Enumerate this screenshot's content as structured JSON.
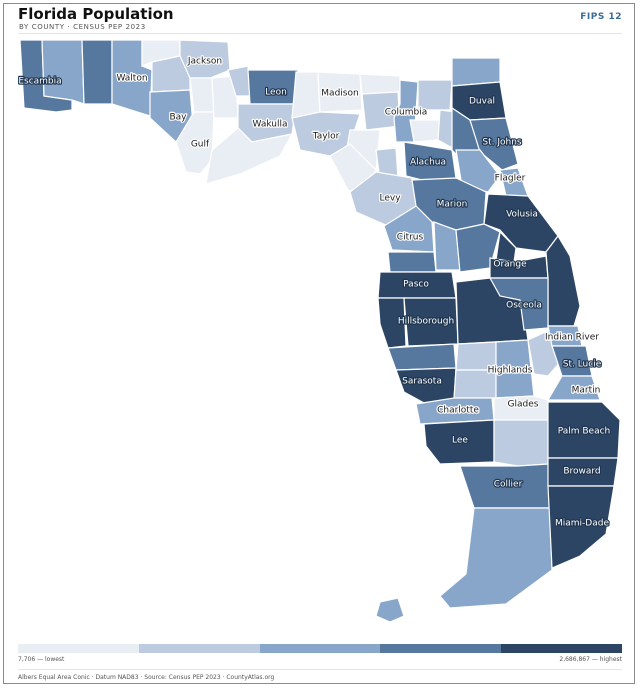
{
  "header": {
    "title": "Florida Population",
    "subtitle": "BY COUNTY · CENSUS PEP 2023",
    "fips": "FIPS 12"
  },
  "colors": {
    "c1": "#e9eef5",
    "c2": "#bccbdf",
    "c3": "#88a6c9",
    "c4": "#56789f",
    "c5": "#2c4564"
  },
  "legend": {
    "low_label": "7,706 — lowest",
    "high_label": "2,686,867 — highest"
  },
  "footer": {
    "credit": "Albers Equal Area Conic · Datum NAD83 · Source: Census PEP 2023 · CountyAtlas.org"
  },
  "counties": [
    {
      "name": "Escambia",
      "class": 4,
      "label": true
    },
    {
      "name": "Santa Rosa",
      "class": 3,
      "label": false
    },
    {
      "name": "Okaloosa",
      "class": 4,
      "label": false
    },
    {
      "name": "Walton",
      "class": 3,
      "label": true
    },
    {
      "name": "Holmes",
      "class": 1,
      "label": false
    },
    {
      "name": "Washington",
      "class": 2,
      "label": false
    },
    {
      "name": "Jackson",
      "class": 2,
      "label": true
    },
    {
      "name": "Bay",
      "class": 3,
      "label": true
    },
    {
      "name": "Calhoun",
      "class": 1,
      "label": false
    },
    {
      "name": "Gulf",
      "class": 1,
      "label": true
    },
    {
      "name": "Liberty",
      "class": 1,
      "label": false
    },
    {
      "name": "Gadsden",
      "class": 2,
      "label": false
    },
    {
      "name": "Leon",
      "class": 4,
      "label": true
    },
    {
      "name": "Wakulla",
      "class": 2,
      "label": true
    },
    {
      "name": "Franklin",
      "class": 1,
      "label": false
    },
    {
      "name": "Jefferson",
      "class": 1,
      "label": false
    },
    {
      "name": "Madison",
      "class": 1,
      "label": true
    },
    {
      "name": "Taylor",
      "class": 2,
      "label": true
    },
    {
      "name": "Hamilton",
      "class": 1,
      "label": false
    },
    {
      "name": "Suwannee",
      "class": 2,
      "label": false
    },
    {
      "name": "Lafayette",
      "class": 1,
      "label": false
    },
    {
      "name": "Dixie",
      "class": 1,
      "label": false
    },
    {
      "name": "Columbia",
      "class": 3,
      "label": true
    },
    {
      "name": "Baker",
      "class": 2,
      "label": false
    },
    {
      "name": "Union",
      "class": 1,
      "label": false
    },
    {
      "name": "Bradford",
      "class": 2,
      "label": false
    },
    {
      "name": "Gilchrist",
      "class": 2,
      "label": false
    },
    {
      "name": "Nassau",
      "class": 3,
      "label": false
    },
    {
      "name": "Duval",
      "class": 5,
      "label": true
    },
    {
      "name": "Clay",
      "class": 4,
      "label": false
    },
    {
      "name": "St. Johns",
      "class": 4,
      "label": true
    },
    {
      "name": "Putnam",
      "class": 3,
      "label": false
    },
    {
      "name": "Flagler",
      "class": 3,
      "label": true
    },
    {
      "name": "Alachua",
      "class": 4,
      "label": true
    },
    {
      "name": "Levy",
      "class": 2,
      "label": true
    },
    {
      "name": "Marion",
      "class": 4,
      "label": true
    },
    {
      "name": "Volusia",
      "class": 5,
      "label": true
    },
    {
      "name": "Citrus",
      "class": 3,
      "label": true
    },
    {
      "name": "Sumter",
      "class": 3,
      "label": false
    },
    {
      "name": "Lake",
      "class": 4,
      "label": false
    },
    {
      "name": "Seminole",
      "class": 5,
      "label": false
    },
    {
      "name": "Orange",
      "class": 5,
      "label": true
    },
    {
      "name": "Brevard",
      "class": 5,
      "label": false
    },
    {
      "name": "Hernando",
      "class": 4,
      "label": false
    },
    {
      "name": "Pasco",
      "class": 5,
      "label": true
    },
    {
      "name": "Pinellas",
      "class": 5,
      "label": false
    },
    {
      "name": "Hillsborough",
      "class": 5,
      "label": true
    },
    {
      "name": "Polk",
      "class": 5,
      "label": false
    },
    {
      "name": "Osceola",
      "class": 4,
      "label": true
    },
    {
      "name": "Manatee",
      "class": 4,
      "label": false
    },
    {
      "name": "Sarasota",
      "class": 5,
      "label": true
    },
    {
      "name": "Hardee",
      "class": 2,
      "label": false
    },
    {
      "name": "DeSoto",
      "class": 2,
      "label": false
    },
    {
      "name": "Highlands",
      "class": 3,
      "label": true
    },
    {
      "name": "Okeechobee",
      "class": 2,
      "label": false
    },
    {
      "name": "Indian River",
      "class": 3,
      "label": true
    },
    {
      "name": "St. Lucie",
      "class": 4,
      "label": true
    },
    {
      "name": "Martin",
      "class": 3,
      "label": true
    },
    {
      "name": "Charlotte",
      "class": 3,
      "label": true
    },
    {
      "name": "Glades",
      "class": 1,
      "label": true
    },
    {
      "name": "Lee",
      "class": 5,
      "label": true
    },
    {
      "name": "Hendry",
      "class": 2,
      "label": false
    },
    {
      "name": "Palm Beach",
      "class": 5,
      "label": true
    },
    {
      "name": "Collier",
      "class": 4,
      "label": true
    },
    {
      "name": "Broward",
      "class": 5,
      "label": true
    },
    {
      "name": "Monroe",
      "class": 3,
      "label": false
    },
    {
      "name": "Miami-Dade",
      "class": 5,
      "label": true
    }
  ]
}
